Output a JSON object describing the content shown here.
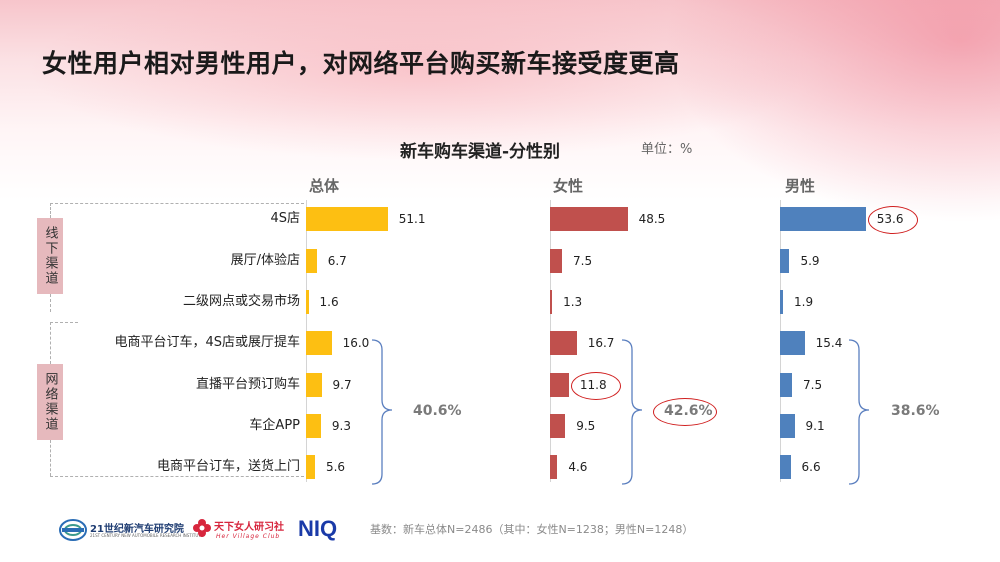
{
  "slide_title": "女性用户相对男性用户，对网络平台购买新车接受度更高",
  "chart_title": "新车购车渠道-分性别",
  "unit": "单位：%",
  "groups": {
    "offline": "线下渠道",
    "online": "网络渠道"
  },
  "chart_data": {
    "type": "bar",
    "orientation": "horizontal",
    "title": "新车购车渠道-分性别",
    "unit": "%",
    "categories": [
      "4S店",
      "展厅/体验店",
      "二级网点或交易市场",
      "电商平台订车，4S店或展厅提车",
      "直播平台预订购车",
      "车企APP",
      "电商平台订车，送货上门"
    ],
    "series": [
      {
        "name": "总体",
        "color": "#FDBF12",
        "values": [
          51.1,
          6.7,
          1.6,
          16.0,
          9.7,
          9.3,
          5.6
        ],
        "labels": [
          "51.1",
          "6.7",
          "1.6",
          "16.0",
          "9.7",
          "9.3",
          "5.6"
        ]
      },
      {
        "name": "女性",
        "color": "#C0504D",
        "values": [
          48.5,
          7.5,
          1.3,
          16.7,
          11.8,
          9.5,
          4.6
        ],
        "labels": [
          "48.5",
          "7.5",
          "1.3",
          "16.7",
          "11.8",
          "9.5",
          "4.6"
        ]
      },
      {
        "name": "男性",
        "color": "#4F81BD",
        "values": [
          53.6,
          5.9,
          1.9,
          15.4,
          7.5,
          9.1,
          6.6
        ],
        "labels": [
          "53.6",
          "5.9",
          "1.9",
          "15.4",
          "7.5",
          "9.1",
          "6.6"
        ]
      }
    ],
    "online_totals": [
      "40.6%",
      "42.6%",
      "38.6%"
    ],
    "highlighted": [
      {
        "series": 1,
        "index": 4
      },
      {
        "series": 2,
        "index": 0
      }
    ],
    "highlighted_totals": [
      1
    ]
  },
  "footer": {
    "note": "基数：新车总体N=2486（其中：女性N=1238；男性N=1248）",
    "logo_21cn": "21世纪新汽车研究院",
    "logo_21cn_sub": "21ST CENTURY NEW AUTOMOBILE RESEARCH INSTITUTE",
    "logo_her": "天下女人研习社",
    "logo_her_sub": "Her Village Club",
    "logo_niq": "NIQ"
  }
}
